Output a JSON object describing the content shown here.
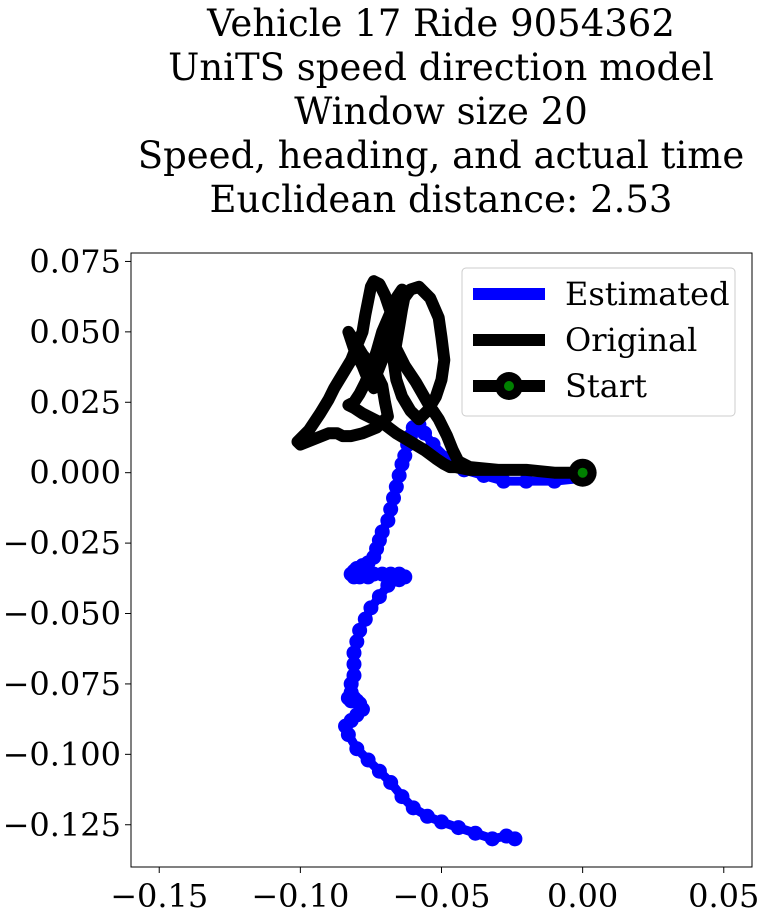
{
  "chart_data": {
    "type": "line",
    "title_lines": [
      "Vehicle 17 Ride 9054362",
      "UniTS speed direction model",
      "Window size 20",
      "Speed, heading, and actual time",
      "Euclidean distance: 2.53"
    ],
    "xlabel": "",
    "ylabel": "",
    "xlim": [
      -0.16,
      0.06
    ],
    "ylim": [
      -0.14,
      0.078
    ],
    "x_ticks": [
      -0.15,
      -0.1,
      -0.05,
      0.0,
      0.05
    ],
    "x_tick_labels": [
      "−0.15",
      "−0.10",
      "−0.05",
      "0.00",
      "0.05"
    ],
    "y_ticks": [
      0.075,
      0.05,
      0.025,
      0.0,
      -0.025,
      -0.05,
      -0.075,
      -0.1,
      -0.125
    ],
    "y_tick_labels": [
      "0.075",
      "0.050",
      "0.025",
      "0.000",
      "−0.025",
      "−0.050",
      "−0.075",
      "−0.100",
      "−0.125"
    ],
    "grid": false,
    "legend_position": "top-right",
    "series": [
      {
        "name": "Estimated",
        "color": "#0000ff",
        "style": "thick line with round markers",
        "x": [
          0.0,
          -0.01,
          -0.02,
          -0.028,
          -0.035,
          -0.042,
          -0.048,
          -0.053,
          -0.056,
          -0.058,
          -0.06,
          -0.061,
          -0.062,
          -0.063,
          -0.064,
          -0.065,
          -0.066,
          -0.067,
          -0.068,
          -0.069,
          -0.071,
          -0.072,
          -0.073,
          -0.074,
          -0.076,
          -0.078,
          -0.08,
          -0.081,
          -0.082,
          -0.081,
          -0.079,
          -0.076,
          -0.074,
          -0.071,
          -0.068,
          -0.065,
          -0.063,
          -0.065,
          -0.069,
          -0.072,
          -0.075,
          -0.077,
          -0.079,
          -0.08,
          -0.081,
          -0.081,
          -0.081,
          -0.082,
          -0.082,
          -0.083,
          -0.082,
          -0.081,
          -0.08,
          -0.079,
          -0.078,
          -0.08,
          -0.082,
          -0.084,
          -0.083,
          -0.08,
          -0.076,
          -0.072,
          -0.068,
          -0.064,
          -0.06,
          -0.055,
          -0.05,
          -0.044,
          -0.038,
          -0.032,
          -0.027,
          -0.024
        ],
        "y": [
          -0.002,
          -0.003,
          -0.003,
          -0.003,
          -0.001,
          0.001,
          0.005,
          0.01,
          0.014,
          0.017,
          0.016,
          0.013,
          0.01,
          0.006,
          0.003,
          -0.001,
          -0.005,
          -0.009,
          -0.013,
          -0.017,
          -0.021,
          -0.024,
          -0.027,
          -0.03,
          -0.032,
          -0.033,
          -0.034,
          -0.035,
          -0.036,
          -0.037,
          -0.037,
          -0.037,
          -0.036,
          -0.036,
          -0.036,
          -0.036,
          -0.037,
          -0.038,
          -0.04,
          -0.044,
          -0.048,
          -0.052,
          -0.056,
          -0.06,
          -0.064,
          -0.068,
          -0.072,
          -0.075,
          -0.078,
          -0.08,
          -0.081,
          -0.08,
          -0.081,
          -0.082,
          -0.084,
          -0.086,
          -0.088,
          -0.09,
          -0.093,
          -0.098,
          -0.102,
          -0.106,
          -0.11,
          -0.115,
          -0.119,
          -0.122,
          -0.124,
          -0.126,
          -0.128,
          -0.13,
          -0.129,
          -0.13
        ]
      },
      {
        "name": "Original",
        "color": "#000000",
        "style": "thick line",
        "x": [
          0.0,
          -0.01,
          -0.02,
          -0.03,
          -0.04,
          -0.044,
          -0.046,
          -0.048,
          -0.051,
          -0.055,
          -0.059,
          -0.063,
          -0.066,
          -0.068,
          -0.068,
          -0.07,
          -0.072,
          -0.074,
          -0.075,
          -0.076,
          -0.077,
          -0.078,
          -0.08,
          -0.082,
          -0.085,
          -0.088,
          -0.09,
          -0.093,
          -0.097,
          -0.101,
          -0.1,
          -0.095,
          -0.09,
          -0.087,
          -0.085,
          -0.082,
          -0.078,
          -0.073,
          -0.069,
          -0.07,
          -0.071,
          -0.074,
          -0.078,
          -0.081,
          -0.083,
          -0.081,
          -0.078,
          -0.076,
          -0.074,
          -0.073,
          -0.073,
          -0.071,
          -0.069,
          -0.067,
          -0.066,
          -0.064,
          -0.061,
          -0.058,
          -0.054,
          -0.051,
          -0.05,
          -0.049,
          -0.05,
          -0.052,
          -0.055,
          -0.058,
          -0.061,
          -0.064,
          -0.066,
          -0.067,
          -0.066,
          -0.065,
          -0.064,
          -0.063,
          -0.064,
          -0.066,
          -0.068,
          -0.071,
          -0.073,
          -0.075,
          -0.077,
          -0.079,
          -0.081,
          -0.083,
          -0.081,
          -0.078,
          -0.074,
          -0.07,
          -0.066,
          -0.061,
          -0.056,
          -0.052,
          -0.049,
          -0.047,
          -0.045,
          -0.04,
          -0.03,
          -0.02,
          -0.01,
          0.0
        ],
        "y": [
          0.0,
          0.0,
          0.001,
          0.001,
          0.002,
          0.004,
          0.008,
          0.013,
          0.019,
          0.025,
          0.032,
          0.038,
          0.044,
          0.05,
          0.057,
          0.063,
          0.067,
          0.068,
          0.066,
          0.061,
          0.056,
          0.05,
          0.045,
          0.04,
          0.035,
          0.03,
          0.026,
          0.021,
          0.015,
          0.011,
          0.01,
          0.012,
          0.014,
          0.014,
          0.013,
          0.013,
          0.014,
          0.016,
          0.02,
          0.025,
          0.031,
          0.037,
          0.042,
          0.047,
          0.05,
          0.044,
          0.038,
          0.033,
          0.03,
          0.031,
          0.035,
          0.04,
          0.045,
          0.05,
          0.055,
          0.061,
          0.065,
          0.066,
          0.062,
          0.055,
          0.048,
          0.04,
          0.033,
          0.027,
          0.022,
          0.019,
          0.022,
          0.027,
          0.033,
          0.04,
          0.046,
          0.052,
          0.058,
          0.063,
          0.065,
          0.062,
          0.057,
          0.05,
          0.043,
          0.037,
          0.032,
          0.028,
          0.025,
          0.024,
          0.023,
          0.021,
          0.019,
          0.017,
          0.014,
          0.011,
          0.008,
          0.005,
          0.003,
          0.002,
          0.002,
          0.001,
          0.001,
          0.001,
          0.0,
          0.0
        ]
      },
      {
        "name": "Start",
        "color": "#008000",
        "edge_color": "#000000",
        "style": "large circle marker",
        "x": [
          0.0
        ],
        "y": [
          0.0
        ]
      }
    ]
  }
}
